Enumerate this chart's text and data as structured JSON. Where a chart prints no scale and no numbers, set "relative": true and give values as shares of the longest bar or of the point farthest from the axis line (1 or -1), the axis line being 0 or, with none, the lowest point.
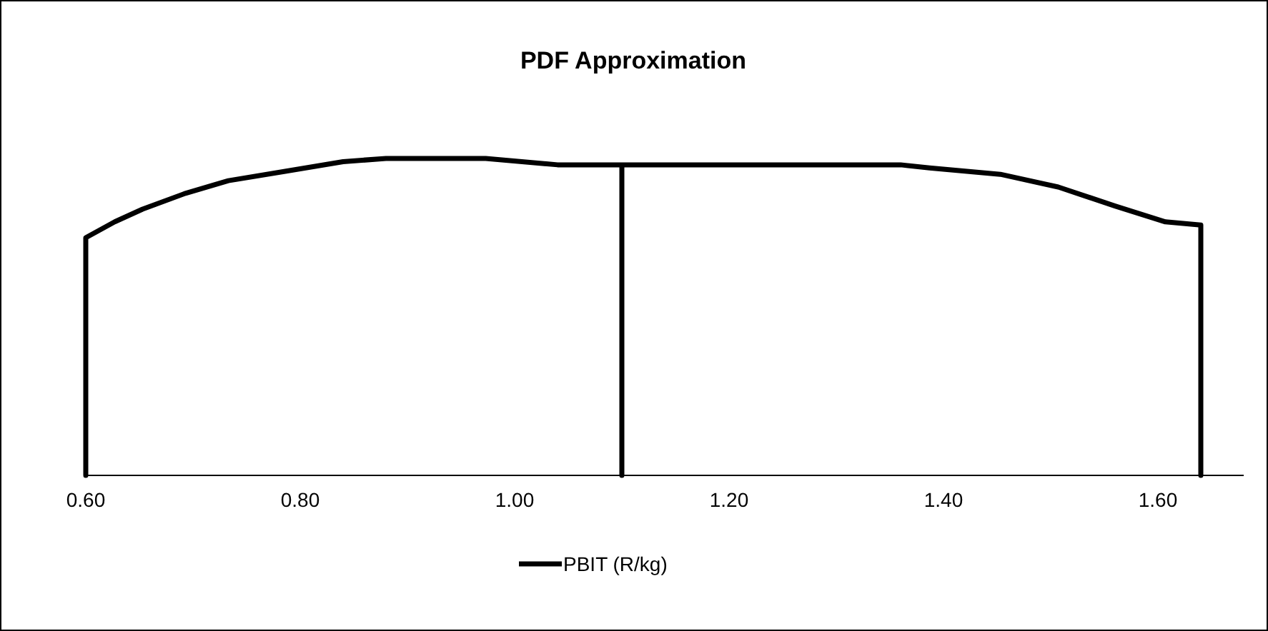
{
  "chart_data": {
    "type": "line",
    "title": "PDF Approximation",
    "relative": true,
    "xlim": [
      0.6,
      1.68
    ],
    "xticks": [
      {
        "value": 0.6,
        "label": "0.60"
      },
      {
        "value": 0.8,
        "label": "0.80"
      },
      {
        "value": 1.0,
        "label": "1.00"
      },
      {
        "value": 1.2,
        "label": "1.20"
      },
      {
        "value": 1.4,
        "label": "1.40"
      },
      {
        "value": 1.6,
        "label": "1.60"
      }
    ],
    "legend": "bottom",
    "grid": false,
    "series": [
      {
        "name": "PBIT (R/kg)",
        "color": "#000000",
        "x": [
          0.6,
          0.6,
          0.627,
          0.653,
          0.693,
          0.733,
          0.787,
          0.84,
          0.88,
          0.973,
          1.04,
          1.1,
          1.1,
          1.1,
          1.36,
          1.387,
          1.453,
          1.507,
          1.56,
          1.607,
          1.64,
          1.64
        ],
        "values": [
          0,
          0.75,
          0.8,
          0.84,
          0.89,
          0.93,
          0.96,
          0.99,
          1,
          1,
          0.98,
          0.98,
          0,
          0.98,
          0.98,
          0.97,
          0.95,
          0.91,
          0.85,
          0.8,
          0.79,
          0
        ]
      }
    ]
  }
}
